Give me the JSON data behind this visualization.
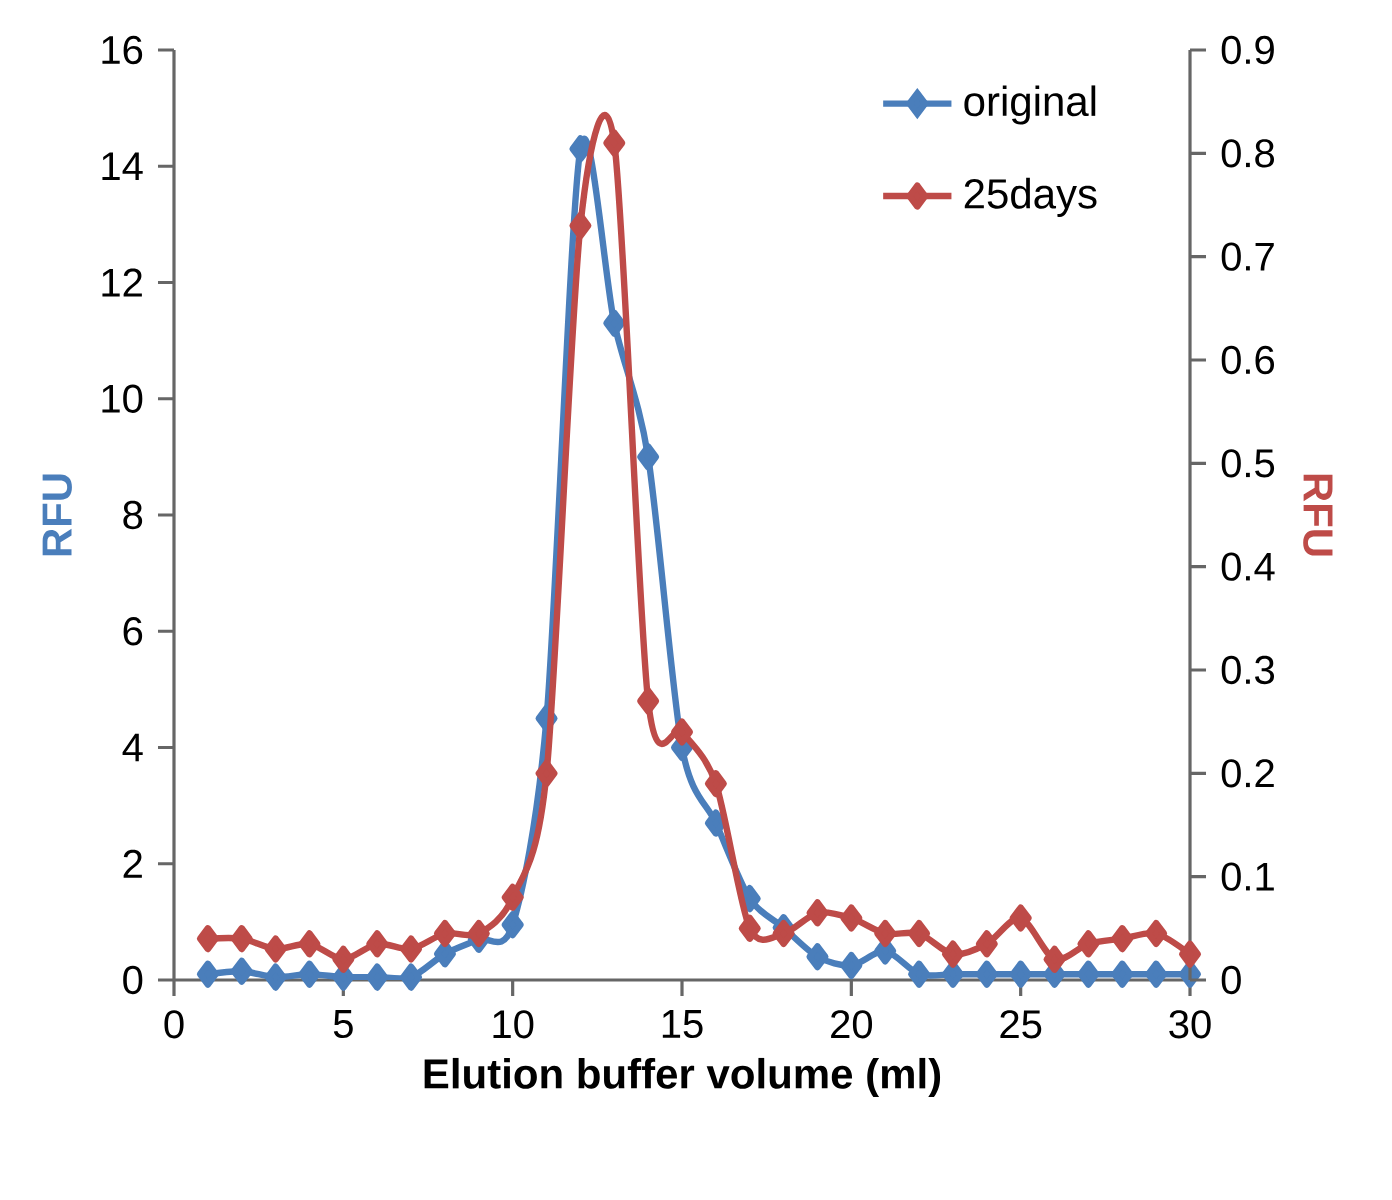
{
  "chart_data": {
    "type": "line",
    "xlabel": "Elution buffer volume (ml)",
    "ylabel": "RFU",
    "y2label": "RFU",
    "x": [
      1,
      2,
      3,
      4,
      5,
      6,
      7,
      8,
      9,
      10,
      11,
      12,
      13,
      14,
      15,
      16,
      17,
      18,
      19,
      20,
      21,
      22,
      23,
      24,
      25,
      26,
      27,
      28,
      29,
      30
    ],
    "series": [
      {
        "name": "original",
        "color": "#4a7ebb",
        "values": [
          0.1,
          0.15,
          0.05,
          0.1,
          0.05,
          0.05,
          0.05,
          0.45,
          0.7,
          0.95,
          4.5,
          14.3,
          11.3,
          9.0,
          4.0,
          2.7,
          1.4,
          0.9,
          0.4,
          0.25,
          0.5,
          0.1,
          0.1,
          0.1,
          0.1,
          0.1,
          0.1,
          0.1,
          0.1,
          0.1
        ]
      },
      {
        "name": "25days",
        "color": "#be4b48",
        "axis": "y2",
        "values": [
          0.04,
          0.04,
          0.03,
          0.035,
          0.02,
          0.035,
          0.03,
          0.045,
          0.045,
          0.08,
          0.2,
          0.73,
          0.81,
          0.27,
          0.24,
          0.19,
          0.05,
          0.045,
          0.065,
          0.06,
          0.045,
          0.045,
          0.025,
          0.035,
          0.06,
          0.02,
          0.035,
          0.04,
          0.045,
          0.025
        ]
      }
    ],
    "xlim": [
      0,
      30
    ],
    "xticks": [
      0,
      5,
      10,
      15,
      20,
      25,
      30
    ],
    "ylim": [
      0,
      16
    ],
    "yticks": [
      0,
      2,
      4,
      6,
      8,
      10,
      12,
      14,
      16
    ],
    "y2lim": [
      0,
      0.9
    ],
    "y2ticks": [
      0,
      0.1,
      0.2,
      0.3,
      0.4,
      0.5,
      0.6,
      0.7,
      0.8,
      0.9
    ],
    "legend": "top right",
    "grid": false,
    "marker": "diamond",
    "line_style": "solid"
  }
}
